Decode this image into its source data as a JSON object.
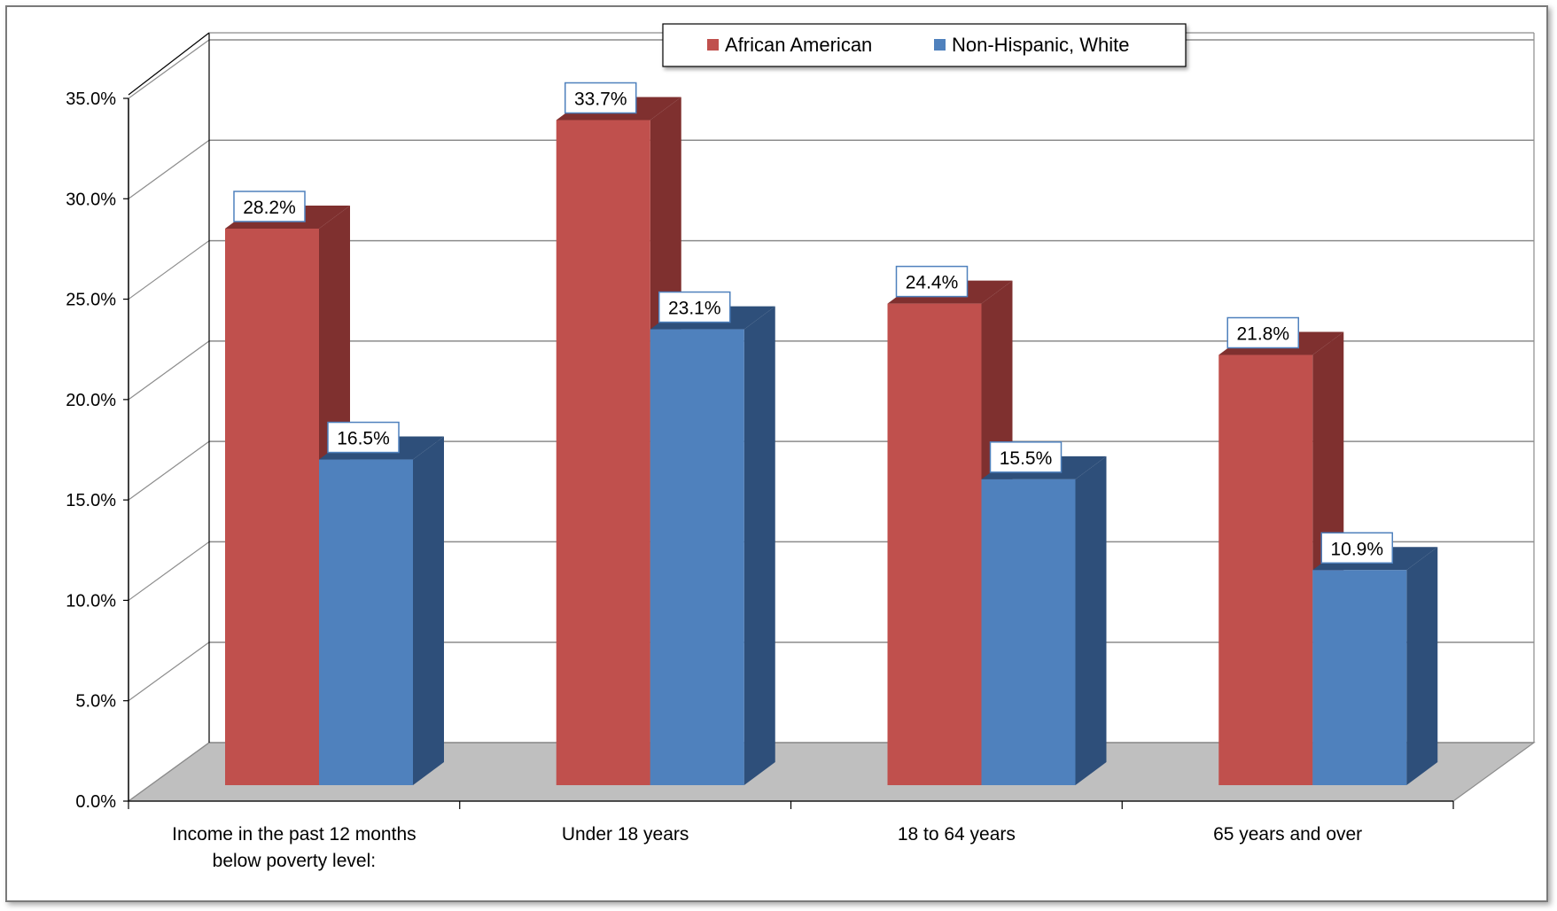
{
  "chart_data": {
    "type": "bar",
    "title": "",
    "xlabel": "",
    "ylabel": "",
    "ylim": [
      0,
      35
    ],
    "y_ticks": [
      "0.0%",
      "5.0%",
      "10.0%",
      "15.0%",
      "20.0%",
      "25.0%",
      "30.0%",
      "35.0%"
    ],
    "categories": [
      [
        "Income in the past 12 months",
        "below poverty level:"
      ],
      [
        "Under 18 years"
      ],
      [
        "18 to 64 years"
      ],
      [
        "65 years and over"
      ]
    ],
    "series": [
      {
        "name": "African American",
        "color": "#C0504D",
        "side_color": "#7F302F",
        "values": [
          28.2,
          33.7,
          24.4,
          21.8
        ],
        "labels": [
          "28.2%",
          "33.7%",
          "24.4%",
          "21.8%"
        ]
      },
      {
        "name": "Non-Hispanic, White",
        "color": "#4F81BD",
        "side_color": "#2E4F7A",
        "values": [
          16.5,
          23.1,
          15.5,
          10.9
        ],
        "labels": [
          "16.5%",
          "23.1%",
          "15.5%",
          "10.9%"
        ]
      }
    ],
    "grid": true,
    "three_d": true,
    "legend_position": "top-center"
  }
}
